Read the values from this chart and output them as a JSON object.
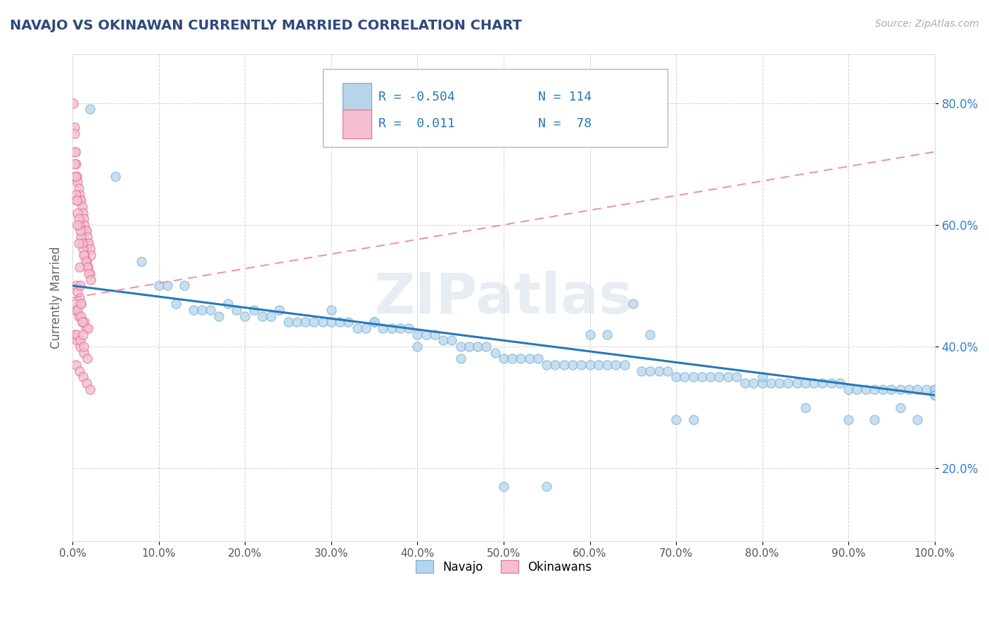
{
  "title": "NAVAJO VS OKINAWAN CURRENTLY MARRIED CORRELATION CHART",
  "source": "Source: ZipAtlas.com",
  "ylabel": "Currently Married",
  "xlim": [
    0.0,
    1.0
  ],
  "ylim": [
    0.08,
    0.88
  ],
  "xticks": [
    0.0,
    0.1,
    0.2,
    0.3,
    0.4,
    0.5,
    0.6,
    0.7,
    0.8,
    0.9,
    1.0
  ],
  "yticks": [
    0.2,
    0.4,
    0.6,
    0.8
  ],
  "navajo_color": "#b8d4ea",
  "navajo_edge_color": "#6aaed6",
  "okinawan_color": "#f5bfcf",
  "okinawan_edge_color": "#e07090",
  "navajo_line_color": "#2878b8",
  "okinawan_line_color": "#e896b0",
  "legend_R_navajo": "-0.504",
  "legend_N_navajo": "114",
  "legend_R_okinawan": "0.011",
  "legend_N_okinawan": "78",
  "background_color": "#ffffff",
  "grid_color": "#cccccc",
  "title_color": "#2e4a7a",
  "axis_label_color": "#3a7ec6",
  "watermark": "ZIPatlas",
  "navajo_x": [
    0.02,
    0.05,
    0.08,
    0.1,
    0.11,
    0.12,
    0.13,
    0.14,
    0.15,
    0.16,
    0.17,
    0.18,
    0.19,
    0.2,
    0.21,
    0.22,
    0.23,
    0.24,
    0.25,
    0.26,
    0.27,
    0.28,
    0.29,
    0.3,
    0.31,
    0.32,
    0.33,
    0.34,
    0.35,
    0.36,
    0.37,
    0.38,
    0.39,
    0.4,
    0.41,
    0.42,
    0.43,
    0.44,
    0.45,
    0.46,
    0.47,
    0.48,
    0.49,
    0.5,
    0.51,
    0.52,
    0.53,
    0.54,
    0.55,
    0.56,
    0.57,
    0.58,
    0.59,
    0.6,
    0.61,
    0.62,
    0.63,
    0.64,
    0.65,
    0.66,
    0.67,
    0.68,
    0.69,
    0.7,
    0.71,
    0.72,
    0.73,
    0.74,
    0.75,
    0.76,
    0.77,
    0.78,
    0.79,
    0.8,
    0.81,
    0.82,
    0.83,
    0.84,
    0.85,
    0.86,
    0.87,
    0.88,
    0.89,
    0.9,
    0.91,
    0.92,
    0.93,
    0.94,
    0.95,
    0.96,
    0.97,
    0.98,
    0.99,
    1.0,
    1.0,
    1.0,
    1.0,
    0.35,
    0.4,
    0.5,
    0.6,
    0.62,
    0.7,
    0.3,
    0.45,
    0.55,
    0.67,
    0.72,
    0.8,
    0.85,
    0.9,
    0.93,
    0.96,
    0.98
  ],
  "navajo_y": [
    0.79,
    0.68,
    0.54,
    0.5,
    0.5,
    0.47,
    0.5,
    0.46,
    0.46,
    0.46,
    0.45,
    0.47,
    0.46,
    0.45,
    0.46,
    0.45,
    0.45,
    0.46,
    0.44,
    0.44,
    0.44,
    0.44,
    0.44,
    0.44,
    0.44,
    0.44,
    0.43,
    0.43,
    0.44,
    0.43,
    0.43,
    0.43,
    0.43,
    0.42,
    0.42,
    0.42,
    0.41,
    0.41,
    0.4,
    0.4,
    0.4,
    0.4,
    0.39,
    0.38,
    0.38,
    0.38,
    0.38,
    0.38,
    0.37,
    0.37,
    0.37,
    0.37,
    0.37,
    0.37,
    0.37,
    0.37,
    0.37,
    0.37,
    0.47,
    0.36,
    0.36,
    0.36,
    0.36,
    0.35,
    0.35,
    0.35,
    0.35,
    0.35,
    0.35,
    0.35,
    0.35,
    0.34,
    0.34,
    0.34,
    0.34,
    0.34,
    0.34,
    0.34,
    0.34,
    0.34,
    0.34,
    0.34,
    0.34,
    0.33,
    0.33,
    0.33,
    0.33,
    0.33,
    0.33,
    0.33,
    0.33,
    0.33,
    0.33,
    0.33,
    0.33,
    0.32,
    0.32,
    0.44,
    0.4,
    0.17,
    0.42,
    0.42,
    0.28,
    0.46,
    0.38,
    0.17,
    0.42,
    0.28,
    0.35,
    0.3,
    0.28,
    0.28,
    0.3,
    0.28
  ],
  "okinawan_x": [
    0.002,
    0.003,
    0.004,
    0.005,
    0.006,
    0.007,
    0.008,
    0.009,
    0.01,
    0.011,
    0.012,
    0.013,
    0.014,
    0.015,
    0.016,
    0.017,
    0.018,
    0.019,
    0.02,
    0.021,
    0.002,
    0.004,
    0.006,
    0.008,
    0.01,
    0.012,
    0.014,
    0.016,
    0.018,
    0.02,
    0.003,
    0.005,
    0.007,
    0.009,
    0.011,
    0.013,
    0.015,
    0.017,
    0.019,
    0.021,
    0.004,
    0.006,
    0.008,
    0.01,
    0.003,
    0.007,
    0.011,
    0.015,
    0.002,
    0.005,
    0.009,
    0.013,
    0.017,
    0.004,
    0.008,
    0.012,
    0.016,
    0.02,
    0.003,
    0.006,
    0.01,
    0.014,
    0.018,
    0.005,
    0.009,
    0.013,
    0.001,
    0.002,
    0.003,
    0.004,
    0.005,
    0.006,
    0.007,
    0.008,
    0.009,
    0.01,
    0.011,
    0.012
  ],
  "okinawan_y": [
    0.76,
    0.72,
    0.7,
    0.68,
    0.67,
    0.66,
    0.65,
    0.64,
    0.64,
    0.63,
    0.62,
    0.61,
    0.6,
    0.59,
    0.59,
    0.58,
    0.57,
    0.57,
    0.56,
    0.55,
    0.7,
    0.65,
    0.62,
    0.6,
    0.58,
    0.56,
    0.55,
    0.54,
    0.53,
    0.52,
    0.68,
    0.64,
    0.61,
    0.59,
    0.57,
    0.55,
    0.54,
    0.53,
    0.52,
    0.51,
    0.5,
    0.49,
    0.48,
    0.47,
    0.46,
    0.45,
    0.44,
    0.43,
    0.42,
    0.41,
    0.4,
    0.39,
    0.38,
    0.37,
    0.36,
    0.35,
    0.34,
    0.33,
    0.47,
    0.46,
    0.45,
    0.44,
    0.43,
    0.42,
    0.41,
    0.4,
    0.8,
    0.75,
    0.72,
    0.68,
    0.64,
    0.6,
    0.57,
    0.53,
    0.5,
    0.47,
    0.44,
    0.42
  ],
  "nav_line_x0": 0.0,
  "nav_line_x1": 1.0,
  "nav_line_y0": 0.5,
  "nav_line_y1": 0.32,
  "oki_line_x0": 0.0,
  "oki_line_x1": 1.0,
  "oki_line_y0": 0.48,
  "oki_line_y1": 0.72
}
